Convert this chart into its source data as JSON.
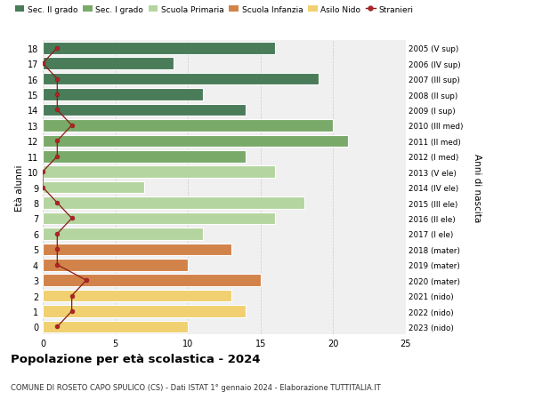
{
  "ages": [
    18,
    17,
    16,
    15,
    14,
    13,
    12,
    11,
    10,
    9,
    8,
    7,
    6,
    5,
    4,
    3,
    2,
    1,
    0
  ],
  "right_labels": [
    "2005 (V sup)",
    "2006 (IV sup)",
    "2007 (III sup)",
    "2008 (II sup)",
    "2009 (I sup)",
    "2010 (III med)",
    "2011 (II med)",
    "2012 (I med)",
    "2013 (V ele)",
    "2014 (IV ele)",
    "2015 (III ele)",
    "2016 (II ele)",
    "2017 (I ele)",
    "2018 (mater)",
    "2019 (mater)",
    "2020 (mater)",
    "2021 (nido)",
    "2022 (nido)",
    "2023 (nido)"
  ],
  "bar_values": [
    16,
    9,
    19,
    11,
    14,
    20,
    21,
    14,
    16,
    7,
    18,
    16,
    11,
    13,
    10,
    15,
    13,
    14,
    10
  ],
  "bar_colors": [
    "#4a7c59",
    "#4a7c59",
    "#4a7c59",
    "#4a7c59",
    "#4a7c59",
    "#7aaa6a",
    "#7aaa6a",
    "#7aaa6a",
    "#b5d5a0",
    "#b5d5a0",
    "#b5d5a0",
    "#b5d5a0",
    "#b5d5a0",
    "#d2834a",
    "#d2834a",
    "#d2834a",
    "#f0d070",
    "#f0d070",
    "#f0d070"
  ],
  "stranieri_values": [
    1,
    0,
    1,
    1,
    1,
    2,
    1,
    1,
    0,
    0,
    1,
    2,
    1,
    1,
    1,
    3,
    2,
    2,
    1
  ],
  "legend_labels": [
    "Sec. II grado",
    "Sec. I grado",
    "Scuola Primaria",
    "Scuola Infanzia",
    "Asilo Nido",
    "Stranieri"
  ],
  "legend_colors": [
    "#4a7c59",
    "#7aaa6a",
    "#b5d5a0",
    "#d2834a",
    "#f0d070",
    "#b22222"
  ],
  "ylabel": "Età alunni",
  "right_ylabel": "Anni di nascita",
  "title": "Popolazione per età scolastica - 2024",
  "subtitle": "COMUNE DI ROSETO CAPO SPULICO (CS) - Dati ISTAT 1° gennaio 2024 - Elaborazione TUTTITALIA.IT",
  "xlim": [
    0,
    25
  ],
  "plot_bgcolor": "#f0f0f0",
  "fig_bgcolor": "#ffffff"
}
